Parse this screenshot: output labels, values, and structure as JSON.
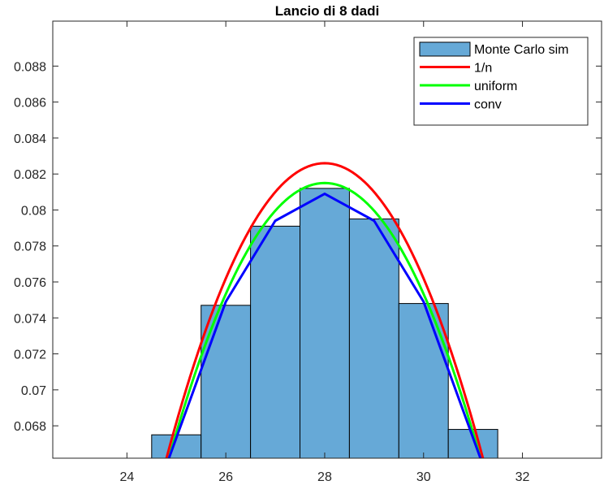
{
  "chart_data": {
    "type": "bar",
    "title": "Lancio di 8 dadi",
    "xlabel": "",
    "ylabel": "",
    "xlim": [
      22.5,
      33.6
    ],
    "ylim": [
      0.0662,
      0.0905
    ],
    "grid": false,
    "legend_position": "top-right",
    "xticks": [
      24,
      26,
      28,
      30,
      32
    ],
    "yticks": [
      0.068,
      0.07,
      0.072,
      0.074,
      0.076,
      0.078,
      0.08,
      0.082,
      0.084,
      0.086,
      0.088
    ],
    "xtick_labels": [
      "24",
      "26",
      "28",
      "30",
      "32"
    ],
    "ytick_labels": [
      "0.068",
      "0.07",
      "0.072",
      "0.074",
      "0.076",
      "0.078",
      "0.08",
      "0.082",
      "0.084",
      "0.086",
      "0.088"
    ],
    "histogram": {
      "name": "Monte Carlo sim",
      "color": "#66a9d7",
      "edge_color": "#000000",
      "bin_width": 1,
      "centers": [
        25,
        26,
        27,
        28,
        29,
        30,
        31
      ],
      "values": [
        0.0675,
        0.0747,
        0.0791,
        0.0812,
        0.0795,
        0.0748,
        0.0678
      ]
    },
    "series": [
      {
        "name": "1/n",
        "color": "#ff0000",
        "curve": "parabola",
        "x_range": [
          24.8,
          31.2
        ],
        "vertex": [
          28,
          0.0826
        ],
        "end_value": 0.0662
      },
      {
        "name": "uniform",
        "color": "#00ff00",
        "curve": "parabola",
        "x_range": [
          24.85,
          31.15
        ],
        "vertex": [
          28,
          0.0815
        ],
        "end_value": 0.0662
      },
      {
        "name": "conv",
        "color": "#0000ff",
        "curve": "polyline",
        "x": [
          24.85,
          26,
          27,
          28,
          29,
          30,
          31.15
        ],
        "y": [
          0.0662,
          0.0749,
          0.0794,
          0.0809,
          0.0794,
          0.0749,
          0.0662
        ]
      }
    ]
  }
}
